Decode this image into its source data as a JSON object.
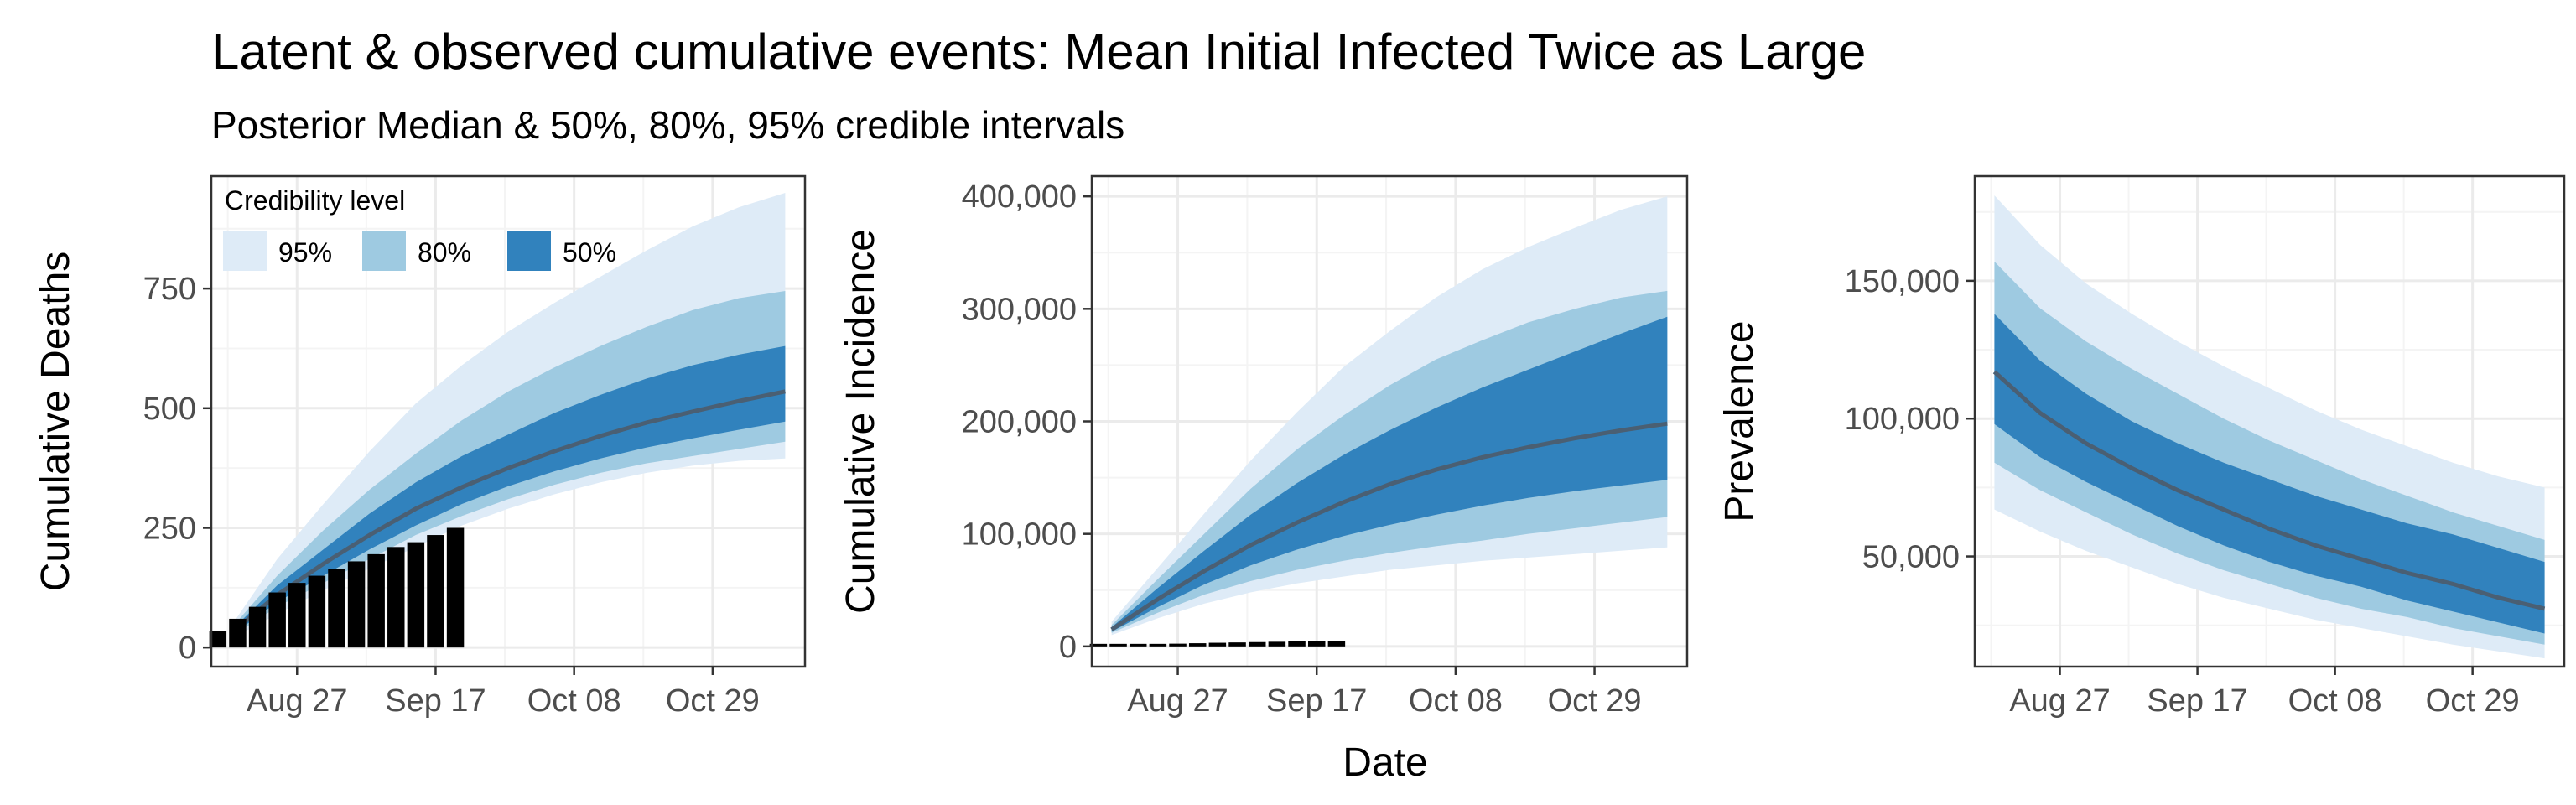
{
  "title": "Latent & observed cumulative events: Mean Initial Infected Twice as Large",
  "subtitle": "Posterior Median & 50%, 80%, 95% credible intervals",
  "legend": {
    "title": "Credibility level",
    "placement": "top-left",
    "items": [
      {
        "label": "95%",
        "color": "#deebf7"
      },
      {
        "label": "80%",
        "color": "#9ecae1"
      },
      {
        "label": "50%",
        "color": "#3182bd"
      }
    ]
  },
  "colors": {
    "median": "#4a5f73",
    "observed": "#000000",
    "grid_major": "#ebebeb",
    "grid_minor": "#f4f4f4",
    "panel_border": "#333333"
  },
  "shared_xlabel": "Date",
  "x_tick_labels": [
    "Aug 27",
    "Sep 17",
    "Oct 08",
    "Oct 29"
  ],
  "chart_data": [
    {
      "type": "area",
      "ylabel": "Cumulative Deaths",
      "x_dates": [
        "2020-08-17",
        "2020-08-24",
        "2020-08-31",
        "2020-09-07",
        "2020-09-14",
        "2020-09-21",
        "2020-09-28",
        "2020-10-05",
        "2020-10-12",
        "2020-10-19",
        "2020-10-26",
        "2020-11-02",
        "2020-11-09"
      ],
      "xlim": [
        "2020-08-14",
        "2020-11-12"
      ],
      "x_ticks": [
        "2020-08-27",
        "2020-09-17",
        "2020-10-08",
        "2020-10-29"
      ],
      "ylim": [
        -40,
        985
      ],
      "y_ticks": [
        0,
        250,
        500,
        750
      ],
      "y_tick_labels": [
        "0",
        "250",
        "500",
        "750"
      ],
      "grid": true,
      "median": [
        30,
        110,
        175,
        235,
        290,
        335,
        375,
        410,
        442,
        470,
        493,
        515,
        535
      ],
      "ci50": {
        "lower": [
          25,
          95,
          150,
          205,
          255,
          300,
          337,
          368,
          395,
          418,
          437,
          455,
          472
        ],
        "upper": [
          35,
          130,
          205,
          280,
          345,
          400,
          445,
          490,
          528,
          562,
          590,
          612,
          630
        ]
      },
      "ci80": {
        "lower": [
          22,
          85,
          135,
          185,
          235,
          275,
          310,
          340,
          365,
          385,
          400,
          415,
          430
        ],
        "upper": [
          40,
          150,
          245,
          330,
          405,
          475,
          535,
          585,
          630,
          670,
          705,
          730,
          745
        ]
      },
      "ci95": {
        "lower": [
          18,
          70,
          120,
          165,
          210,
          255,
          290,
          320,
          345,
          365,
          380,
          390,
          395
        ],
        "upper": [
          45,
          185,
          300,
          410,
          510,
          590,
          660,
          720,
          775,
          830,
          880,
          920,
          950
        ]
      },
      "observed": {
        "type": "bar",
        "x_dates": [
          "2020-08-15",
          "2020-08-18",
          "2020-08-21",
          "2020-08-24",
          "2020-08-27",
          "2020-08-30",
          "2020-09-02",
          "2020-09-05",
          "2020-09-08",
          "2020-09-11",
          "2020-09-14",
          "2020-09-17",
          "2020-09-20"
        ],
        "values": [
          35,
          60,
          85,
          115,
          135,
          150,
          165,
          180,
          195,
          210,
          220,
          235,
          250
        ]
      }
    },
    {
      "type": "area",
      "ylabel": "Cumulative Incidence",
      "x_dates": [
        "2020-08-17",
        "2020-08-24",
        "2020-08-31",
        "2020-09-07",
        "2020-09-14",
        "2020-09-21",
        "2020-09-28",
        "2020-10-05",
        "2020-10-12",
        "2020-10-19",
        "2020-10-26",
        "2020-11-02",
        "2020-11-09"
      ],
      "xlim": [
        "2020-08-14",
        "2020-11-12"
      ],
      "x_ticks": [
        "2020-08-27",
        "2020-09-17",
        "2020-10-08",
        "2020-10-29"
      ],
      "ylim": [
        -18000,
        418000
      ],
      "y_ticks": [
        0,
        100000,
        200000,
        300000,
        400000
      ],
      "y_tick_labels": [
        "0",
        "100,000",
        "200,000",
        "300,000",
        "400,000"
      ],
      "grid": true,
      "median": [
        15000,
        42000,
        67000,
        90000,
        110000,
        128000,
        144000,
        157000,
        168000,
        177000,
        185000,
        192000,
        198000
      ],
      "ci50": {
        "lower": [
          13000,
          35000,
          55000,
          72000,
          86000,
          98000,
          108000,
          117000,
          125000,
          132000,
          138000,
          143000,
          148000
        ],
        "upper": [
          17000,
          52000,
          85000,
          117000,
          145000,
          170000,
          192000,
          212000,
          230000,
          246000,
          262000,
          278000,
          293000
        ]
      },
      "ci80": {
        "lower": [
          12000,
          30000,
          46000,
          58000,
          68000,
          76000,
          83000,
          89000,
          94000,
          100000,
          105000,
          110000,
          115000
        ],
        "upper": [
          19000,
          60000,
          100000,
          140000,
          175000,
          205000,
          232000,
          255000,
          272000,
          288000,
          300000,
          310000,
          316000
        ]
      },
      "ci95": {
        "lower": [
          10000,
          25000,
          38000,
          48000,
          56000,
          62000,
          68000,
          72000,
          76000,
          79000,
          82000,
          85000,
          88000
        ],
        "upper": [
          22000,
          70000,
          118000,
          165000,
          208000,
          248000,
          280000,
          310000,
          335000,
          355000,
          372000,
          388000,
          400000
        ]
      },
      "observed": {
        "type": "bar",
        "x_dates": [
          "2020-08-15",
          "2020-08-18",
          "2020-08-21",
          "2020-08-24",
          "2020-08-27",
          "2020-08-30",
          "2020-09-02",
          "2020-09-05",
          "2020-09-08",
          "2020-09-11",
          "2020-09-14",
          "2020-09-17",
          "2020-09-20"
        ],
        "values": [
          800,
          1200,
          1600,
          2000,
          2400,
          2800,
          3200,
          3500,
          3800,
          4100,
          4400,
          4700,
          5000
        ]
      }
    },
    {
      "type": "area",
      "ylabel": "Prevalence",
      "x_dates": [
        "2020-08-17",
        "2020-08-24",
        "2020-08-31",
        "2020-09-07",
        "2020-09-14",
        "2020-09-21",
        "2020-09-28",
        "2020-10-05",
        "2020-10-12",
        "2020-10-19",
        "2020-10-26",
        "2020-11-02",
        "2020-11-09"
      ],
      "xlim": [
        "2020-08-14",
        "2020-11-12"
      ],
      "x_ticks": [
        "2020-08-27",
        "2020-09-17",
        "2020-10-08",
        "2020-10-29"
      ],
      "ylim": [
        10000,
        188000
      ],
      "y_ticks": [
        50000,
        100000,
        150000
      ],
      "y_tick_labels": [
        "50,000",
        "100,000",
        "150,000"
      ],
      "grid": true,
      "median": [
        117000,
        102000,
        91000,
        82000,
        74000,
        67000,
        60000,
        54000,
        49000,
        44000,
        40000,
        35000,
        31000
      ],
      "ci50": {
        "lower": [
          98000,
          86000,
          77000,
          69000,
          61000,
          54000,
          48000,
          43000,
          39000,
          34000,
          30000,
          26000,
          22000
        ],
        "upper": [
          138000,
          121000,
          109000,
          99000,
          91000,
          84000,
          78000,
          72000,
          67000,
          62000,
          58000,
          53000,
          48000
        ]
      },
      "ci80": {
        "lower": [
          84000,
          74000,
          66000,
          58000,
          51000,
          45000,
          40000,
          35000,
          31000,
          28000,
          24000,
          21000,
          18000
        ],
        "upper": [
          157000,
          140000,
          128000,
          118000,
          109000,
          100000,
          92000,
          85000,
          78000,
          72000,
          66000,
          61000,
          56000
        ]
      },
      "ci95": {
        "lower": [
          67000,
          59000,
          52000,
          46000,
          40000,
          35000,
          31000,
          27000,
          24000,
          21000,
          18000,
          15500,
          13000
        ],
        "upper": [
          181000,
          163000,
          149000,
          138000,
          128000,
          119000,
          111000,
          103000,
          96000,
          90000,
          84000,
          79000,
          75000
        ]
      }
    }
  ]
}
